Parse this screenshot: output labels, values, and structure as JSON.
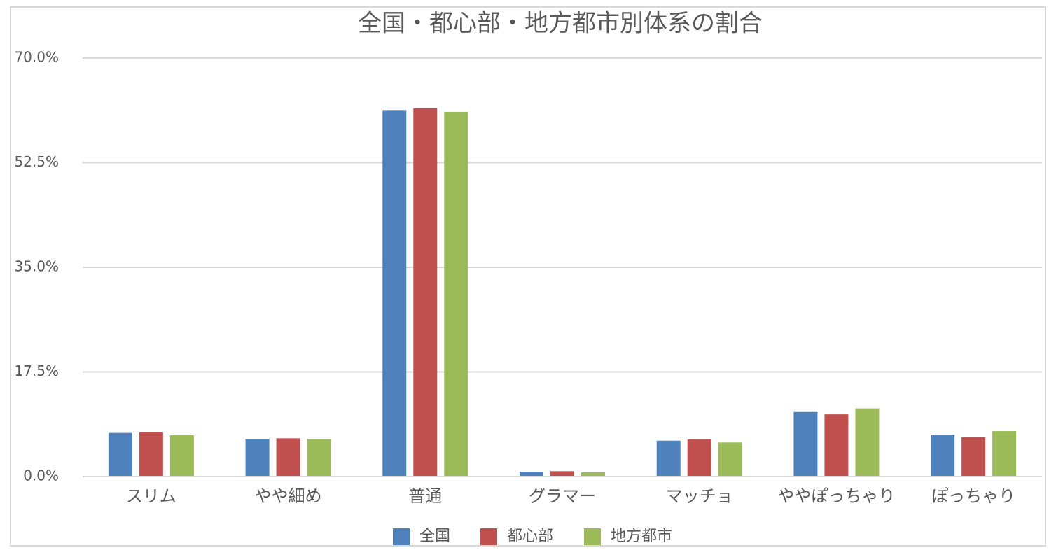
{
  "chart_data": {
    "type": "bar",
    "title": "全国・都心部・地方都市別体系の割合",
    "categories": [
      "スリム",
      "やや細め",
      "普通",
      "グラマー",
      "マッチョ",
      "ややぽっちゃり",
      "ぽっちゃり"
    ],
    "series": [
      {
        "name": "全国",
        "color": "#4f81bd",
        "values": [
          7.3,
          6.3,
          61.3,
          0.8,
          6.0,
          10.8,
          7.0
        ]
      },
      {
        "name": "都心部",
        "color": "#c0504d",
        "values": [
          7.4,
          6.4,
          61.6,
          0.9,
          6.2,
          10.4,
          6.6
        ]
      },
      {
        "name": "地方都市",
        "color": "#9bbb59",
        "values": [
          6.9,
          6.3,
          61.0,
          0.7,
          5.7,
          11.4,
          7.6
        ]
      }
    ],
    "ylim": [
      0,
      70
    ],
    "yticks": [
      {
        "value": 0,
        "label": "0.0%"
      },
      {
        "value": 17.5,
        "label": "17.5%"
      },
      {
        "value": 35,
        "label": "35.0%"
      },
      {
        "value": 52.5,
        "label": "52.5%"
      },
      {
        "value": 70,
        "label": "70.0%"
      }
    ],
    "grid": true,
    "legend": "bottom"
  }
}
